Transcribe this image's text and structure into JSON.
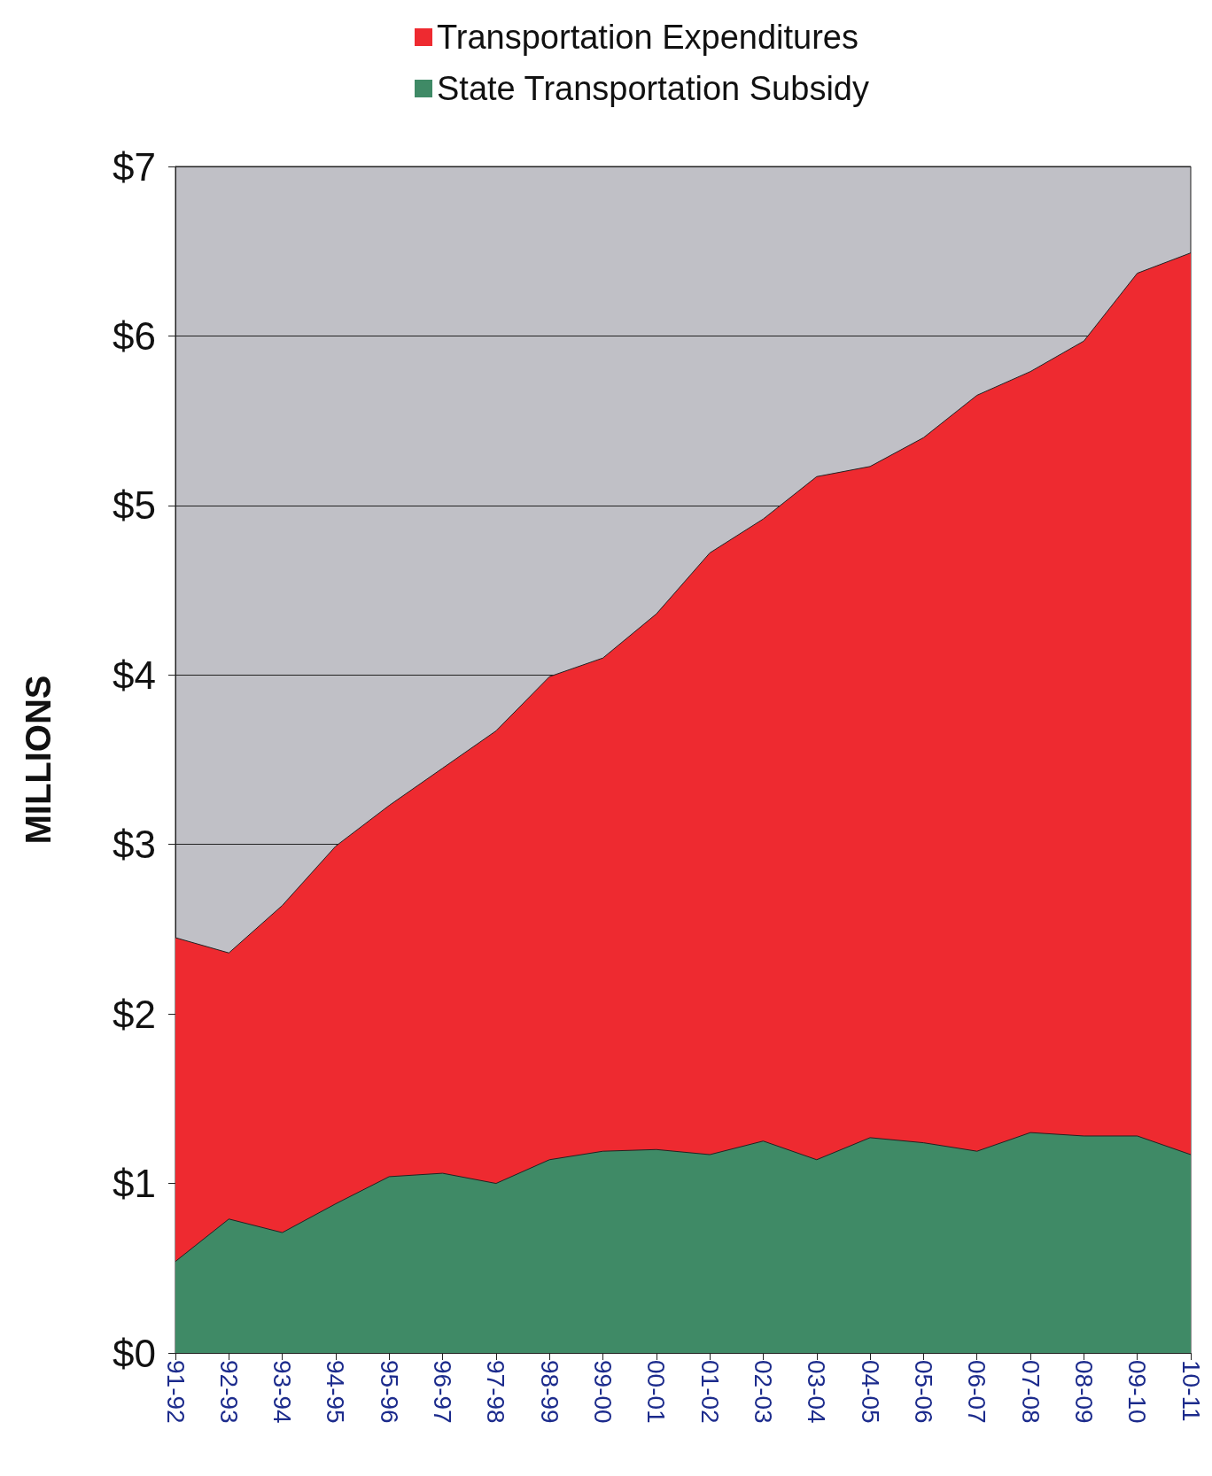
{
  "chart_data": {
    "type": "area",
    "ylabel": "MILLIONS",
    "categories": [
      "91-92",
      "92-93",
      "93-94",
      "94-95",
      "95-96",
      "96-97",
      "97-98",
      "98-99",
      "99-00",
      "00-01",
      "01-02",
      "02-03",
      "03-04",
      "04-05",
      "05-06",
      "06-07",
      "07-08",
      "08-09",
      "09-10",
      "10-11"
    ],
    "series": [
      {
        "name": "Transportation Expenditures",
        "color": "#ee2a30",
        "values": [
          2.45,
          2.36,
          2.64,
          2.99,
          3.23,
          3.45,
          3.67,
          3.99,
          4.1,
          4.36,
          4.72,
          4.92,
          5.17,
          5.23,
          5.4,
          5.65,
          5.79,
          5.97,
          6.37,
          6.49
        ]
      },
      {
        "name": "State Transportation Subsidy",
        "color": "#3f8a66",
        "values": [
          0.54,
          0.79,
          0.71,
          0.88,
          1.04,
          1.06,
          1.0,
          1.14,
          1.19,
          1.2,
          1.17,
          1.25,
          1.14,
          1.27,
          1.24,
          1.19,
          1.3,
          1.28,
          1.28,
          1.17
        ]
      }
    ],
    "ylim": [
      0,
      7
    ],
    "yticks": [
      {
        "value": 0,
        "label": "$0"
      },
      {
        "value": 1,
        "label": "$1"
      },
      {
        "value": 2,
        "label": "$2"
      },
      {
        "value": 3,
        "label": "$3"
      },
      {
        "value": 4,
        "label": "$4"
      },
      {
        "value": 5,
        "label": "$5"
      },
      {
        "value": 6,
        "label": "$6"
      },
      {
        "value": 7,
        "label": "$7"
      }
    ],
    "grid": "y",
    "legend": "top"
  }
}
